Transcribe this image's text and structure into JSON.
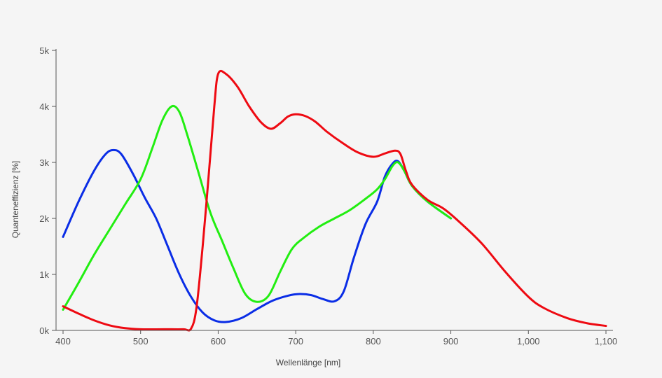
{
  "chart_data": {
    "type": "line",
    "title": "",
    "xlabel": "Wellenlänge [nm]",
    "ylabel": "Quanteneffizienz [%]",
    "xlim": [
      400,
      1100
    ],
    "ylim": [
      0,
      5000
    ],
    "x_ticks": [
      {
        "value": 400,
        "label": "400"
      },
      {
        "value": 500,
        "label": "500"
      },
      {
        "value": 600,
        "label": "600"
      },
      {
        "value": 700,
        "label": "700"
      },
      {
        "value": 800,
        "label": "800"
      },
      {
        "value": 900,
        "label": "900"
      },
      {
        "value": 1000,
        "label": "1,000"
      },
      {
        "value": 1100,
        "label": "1,100"
      }
    ],
    "y_ticks": [
      {
        "value": 0,
        "label": "0k"
      },
      {
        "value": 1000,
        "label": "1k"
      },
      {
        "value": 2000,
        "label": "2k"
      },
      {
        "value": 3000,
        "label": "3k"
      },
      {
        "value": 4000,
        "label": "4k"
      },
      {
        "value": 5000,
        "label": "5k"
      }
    ],
    "grid": false,
    "legend": "none",
    "series": [
      {
        "color": "#0a2de6",
        "points": [
          [
            400,
            1670
          ],
          [
            420,
            2300
          ],
          [
            440,
            2850
          ],
          [
            455,
            3150
          ],
          [
            465,
            3220
          ],
          [
            475,
            3150
          ],
          [
            490,
            2800
          ],
          [
            505,
            2380
          ],
          [
            520,
            2000
          ],
          [
            535,
            1500
          ],
          [
            550,
            1000
          ],
          [
            565,
            600
          ],
          [
            580,
            320
          ],
          [
            595,
            180
          ],
          [
            610,
            150
          ],
          [
            630,
            220
          ],
          [
            650,
            380
          ],
          [
            670,
            530
          ],
          [
            690,
            620
          ],
          [
            705,
            650
          ],
          [
            720,
            630
          ],
          [
            735,
            560
          ],
          [
            750,
            520
          ],
          [
            762,
            700
          ],
          [
            775,
            1300
          ],
          [
            790,
            1900
          ],
          [
            805,
            2300
          ],
          [
            815,
            2750
          ],
          [
            825,
            2980
          ],
          [
            832,
            3020
          ],
          [
            840,
            2850
          ],
          [
            850,
            2580
          ],
          [
            870,
            2300
          ],
          [
            900,
            2000
          ]
        ]
      },
      {
        "color": "#22ee11",
        "points": [
          [
            400,
            370
          ],
          [
            420,
            850
          ],
          [
            440,
            1350
          ],
          [
            460,
            1800
          ],
          [
            480,
            2250
          ],
          [
            500,
            2700
          ],
          [
            515,
            3250
          ],
          [
            528,
            3750
          ],
          [
            540,
            4000
          ],
          [
            550,
            3900
          ],
          [
            560,
            3500
          ],
          [
            575,
            2800
          ],
          [
            590,
            2100
          ],
          [
            605,
            1600
          ],
          [
            620,
            1100
          ],
          [
            635,
            650
          ],
          [
            650,
            510
          ],
          [
            665,
            620
          ],
          [
            680,
            1050
          ],
          [
            695,
            1450
          ],
          [
            710,
            1650
          ],
          [
            730,
            1850
          ],
          [
            750,
            2000
          ],
          [
            770,
            2150
          ],
          [
            790,
            2350
          ],
          [
            805,
            2520
          ],
          [
            815,
            2700
          ],
          [
            825,
            2940
          ],
          [
            832,
            3000
          ],
          [
            840,
            2850
          ],
          [
            850,
            2580
          ],
          [
            870,
            2300
          ],
          [
            900,
            2000
          ]
        ]
      },
      {
        "color": "#ee0a12",
        "points": [
          [
            400,
            430
          ],
          [
            420,
            300
          ],
          [
            440,
            180
          ],
          [
            460,
            90
          ],
          [
            480,
            40
          ],
          [
            500,
            20
          ],
          [
            530,
            20
          ],
          [
            555,
            20
          ],
          [
            565,
            30
          ],
          [
            572,
            400
          ],
          [
            580,
            1500
          ],
          [
            588,
            2800
          ],
          [
            595,
            4000
          ],
          [
            600,
            4580
          ],
          [
            610,
            4580
          ],
          [
            625,
            4350
          ],
          [
            640,
            4000
          ],
          [
            655,
            3720
          ],
          [
            668,
            3600
          ],
          [
            680,
            3700
          ],
          [
            690,
            3820
          ],
          [
            700,
            3860
          ],
          [
            712,
            3830
          ],
          [
            725,
            3730
          ],
          [
            740,
            3550
          ],
          [
            760,
            3350
          ],
          [
            780,
            3180
          ],
          [
            800,
            3100
          ],
          [
            815,
            3160
          ],
          [
            828,
            3210
          ],
          [
            835,
            3150
          ],
          [
            842,
            2850
          ],
          [
            850,
            2600
          ],
          [
            870,
            2330
          ],
          [
            890,
            2180
          ],
          [
            910,
            1950
          ],
          [
            940,
            1550
          ],
          [
            970,
            1050
          ],
          [
            1000,
            600
          ],
          [
            1020,
            400
          ],
          [
            1050,
            220
          ],
          [
            1075,
            130
          ],
          [
            1100,
            80
          ]
        ]
      }
    ]
  }
}
